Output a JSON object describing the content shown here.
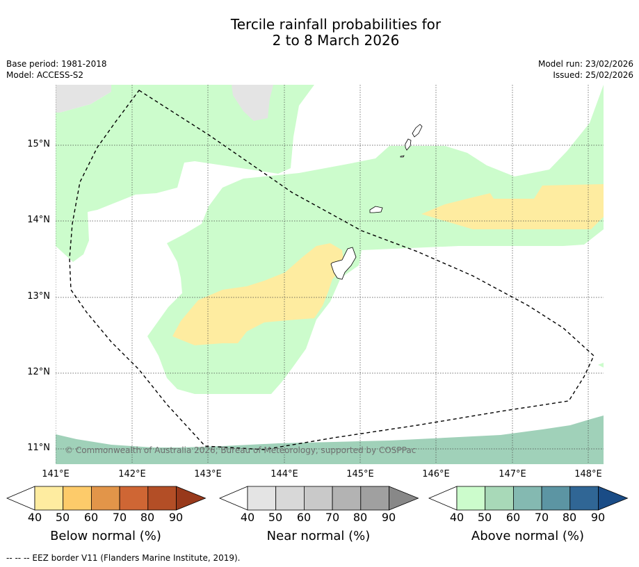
{
  "title": {
    "line1": "Tercile rainfall probabilities for",
    "line2": "2 to 8 March 2026"
  },
  "meta": {
    "base_period": "Base period: 1981-2018",
    "model": "Model: ACCESS-S2",
    "model_run": "Model run: 23/02/2026",
    "issued": "Issued: 25/02/2026"
  },
  "map": {
    "lat_labels": [
      "15°N",
      "14°N",
      "13°N",
      "12°N",
      "11°N"
    ],
    "lon_labels": [
      "141°E",
      "142°E",
      "143°E",
      "144°E",
      "145°E",
      "146°E",
      "147°E",
      "148°E"
    ],
    "copyright": "© Commonwealth of Australia 2026, Bureau of Meteorology, supported by COSPPac",
    "colors": {
      "ocean": "#ffffff",
      "above_40": "#ccfccc",
      "above_50": "#a0d1b9",
      "below_40": "#feeca0",
      "near_40": "#e4e4e4"
    }
  },
  "colorbars": [
    {
      "label": "Below normal (%)",
      "ticks": [
        "40",
        "50",
        "60",
        "70",
        "80",
        "90"
      ],
      "colors": [
        "#feeca0",
        "#fdcb6a",
        "#e29549",
        "#cf6634",
        "#b34e26",
        "#98391b"
      ]
    },
    {
      "label": "Near normal (%)",
      "ticks": [
        "40",
        "50",
        "60",
        "70",
        "80",
        "90"
      ],
      "colors": [
        "#e4e4e4",
        "#d8d8d8",
        "#c9c9c9",
        "#b3b3b3",
        "#a0a0a0",
        "#888888"
      ]
    },
    {
      "label": "Above normal (%)",
      "ticks": [
        "40",
        "50",
        "60",
        "70",
        "80",
        "90"
      ],
      "colors": [
        "#ccfccc",
        "#a8d9b8",
        "#84b9b1",
        "#5c95a3",
        "#306695",
        "#1a4c86"
      ]
    }
  ],
  "footnote": "--  --  -- EEZ border V11 (Flanders Marine Institute, 2019)."
}
